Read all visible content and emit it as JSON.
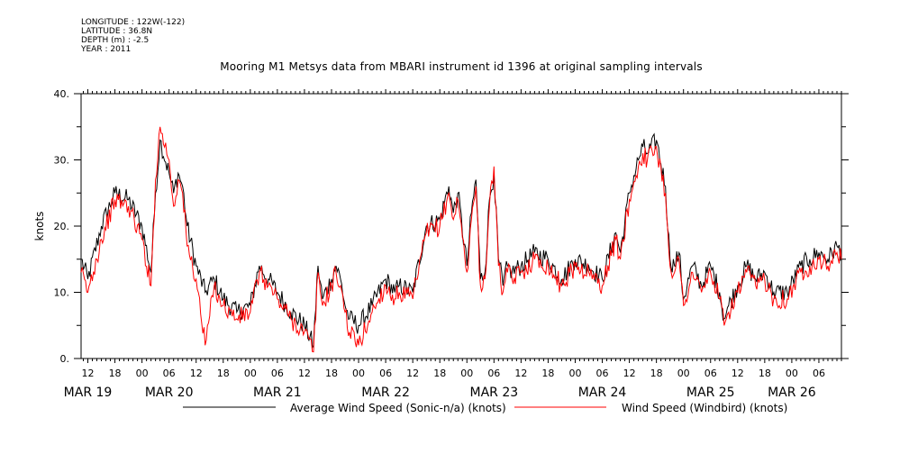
{
  "meta": {
    "lines": [
      "LONGITUDE : 122W(-122)",
      "LATITUDE : 36.8N",
      "DEPTH (m) : -2.5",
      "YEAR : 2011"
    ]
  },
  "chart_data": {
    "type": "line",
    "title": "Mooring M1 Metsys data from MBARI instrument id 1396 at original sampling intervals",
    "ylabel": "knots",
    "xlabel": "",
    "ylim": [
      0,
      40
    ],
    "yticks": [
      0,
      10,
      20,
      30,
      40
    ],
    "ytick_labels": [
      "0.",
      "10.",
      "20.",
      "30.",
      "40."
    ],
    "xlim": [
      -1.5,
      167
    ],
    "x_unit": "hours since MAR 19 00",
    "hour_ticks": [
      {
        "x": 0,
        "label": "12"
      },
      {
        "x": 6,
        "label": "18"
      },
      {
        "x": 12,
        "label": "00"
      },
      {
        "x": 18,
        "label": "06"
      },
      {
        "x": 24,
        "label": "12"
      },
      {
        "x": 30,
        "label": "18"
      },
      {
        "x": 36,
        "label": "00"
      },
      {
        "x": 42,
        "label": "06"
      },
      {
        "x": 48,
        "label": "12"
      },
      {
        "x": 54,
        "label": "18"
      },
      {
        "x": 60,
        "label": "00"
      },
      {
        "x": 66,
        "label": "06"
      },
      {
        "x": 72,
        "label": "12"
      },
      {
        "x": 78,
        "label": "18"
      },
      {
        "x": 84,
        "label": "00"
      },
      {
        "x": 90,
        "label": "06"
      },
      {
        "x": 96,
        "label": "12"
      },
      {
        "x": 102,
        "label": "18"
      },
      {
        "x": 108,
        "label": "00"
      },
      {
        "x": 114,
        "label": "06"
      },
      {
        "x": 120,
        "label": "12"
      },
      {
        "x": 126,
        "label": "18"
      },
      {
        "x": 132,
        "label": "00"
      },
      {
        "x": 138,
        "label": "06"
      },
      {
        "x": 144,
        "label": "12"
      },
      {
        "x": 150,
        "label": "18"
      },
      {
        "x": 156,
        "label": "00"
      },
      {
        "x": 162,
        "label": "06"
      }
    ],
    "day_labels": [
      {
        "x": 0,
        "label": "MAR 19"
      },
      {
        "x": 18,
        "label": "MAR 20"
      },
      {
        "x": 42,
        "label": "MAR 21"
      },
      {
        "x": 66,
        "label": "MAR 22"
      },
      {
        "x": 90,
        "label": "MAR 23"
      },
      {
        "x": 114,
        "label": "MAR 24"
      },
      {
        "x": 138,
        "label": "MAR 25"
      },
      {
        "x": 156,
        "label": "MAR 26"
      }
    ],
    "series": [
      {
        "name": "Average Wind Speed (Sonic-n/a) (knots)",
        "color": "#000000",
        "x": [
          -1.5,
          0,
          3,
          6,
          9,
          12,
          14,
          15,
          16,
          18,
          19,
          20,
          21,
          22,
          24,
          26,
          28,
          30,
          33,
          36,
          38,
          40,
          42,
          45,
          48,
          50,
          51,
          52,
          54,
          55,
          56,
          57,
          58,
          60,
          63,
          66,
          68,
          69,
          72,
          75,
          78,
          80,
          81,
          82,
          84,
          85,
          86,
          87,
          88,
          89,
          90,
          91,
          92,
          93,
          94,
          96,
          99,
          102,
          105,
          108,
          111,
          114,
          117,
          118,
          120,
          122,
          123,
          124,
          126,
          128,
          129,
          130,
          131,
          132,
          134,
          136,
          138,
          140,
          141,
          142,
          144,
          146,
          148,
          150,
          152,
          155,
          158,
          160,
          162,
          164,
          166,
          167
        ],
        "y": [
          15,
          12,
          20,
          25,
          24,
          20,
          13,
          25,
          33,
          28,
          25,
          28,
          26,
          20,
          14,
          10,
          12,
          9,
          7,
          8,
          14,
          12,
          10,
          7,
          5,
          2,
          14,
          9,
          12,
          14,
          12,
          8,
          6,
          5,
          8,
          12,
          10,
          11,
          10,
          20,
          21,
          26,
          22,
          25,
          14,
          22,
          27,
          12,
          13,
          24,
          28,
          15,
          11,
          14,
          13,
          14,
          16,
          15,
          12,
          15,
          14,
          12,
          19,
          16,
          25,
          30,
          32,
          31,
          33,
          26,
          15,
          14,
          16,
          9,
          14,
          11,
          14,
          10,
          6,
          8,
          11,
          14,
          12,
          13,
          10,
          10,
          14,
          15,
          16,
          15,
          17,
          16
        ]
      },
      {
        "name": "Wind Speed (Windbird) (knots)",
        "color": "#ff0000",
        "x": [
          -1.5,
          0,
          3,
          6,
          9,
          12,
          14,
          15,
          16,
          18,
          19,
          20,
          21,
          22,
          24,
          26,
          28,
          30,
          33,
          36,
          38,
          40,
          42,
          45,
          48,
          50,
          51,
          52,
          54,
          55,
          56,
          57,
          58,
          60,
          63,
          66,
          68,
          69,
          72,
          75,
          78,
          80,
          81,
          82,
          84,
          85,
          86,
          87,
          88,
          89,
          90,
          91,
          92,
          93,
          94,
          96,
          99,
          102,
          105,
          108,
          111,
          114,
          117,
          118,
          120,
          122,
          123,
          124,
          126,
          128,
          129,
          130,
          131,
          132,
          134,
          136,
          138,
          140,
          141,
          142,
          144,
          146,
          148,
          150,
          152,
          155,
          158,
          160,
          162,
          164,
          166,
          167
        ],
        "y": [
          13,
          10,
          18,
          24,
          23,
          18,
          11,
          27,
          35,
          30,
          23,
          27,
          25,
          17,
          12,
          2,
          11,
          8,
          6,
          7,
          13,
          11,
          9,
          6,
          4,
          1,
          13,
          8,
          11,
          13,
          11,
          7,
          4,
          2,
          7,
          11,
          9,
          10,
          9,
          19,
          20,
          25,
          21,
          24,
          13,
          21,
          26,
          11,
          12,
          23,
          29,
          14,
          10,
          13,
          12,
          13,
          15,
          14,
          11,
          14,
          13,
          11,
          18,
          15,
          24,
          29,
          31,
          30,
          32,
          25,
          14,
          13,
          15,
          8,
          13,
          10,
          13,
          9,
          5,
          7,
          10,
          13,
          11,
          12,
          9,
          9,
          13,
          14,
          15,
          14,
          16,
          15
        ]
      }
    ],
    "legend": "bottom",
    "grid": false
  }
}
